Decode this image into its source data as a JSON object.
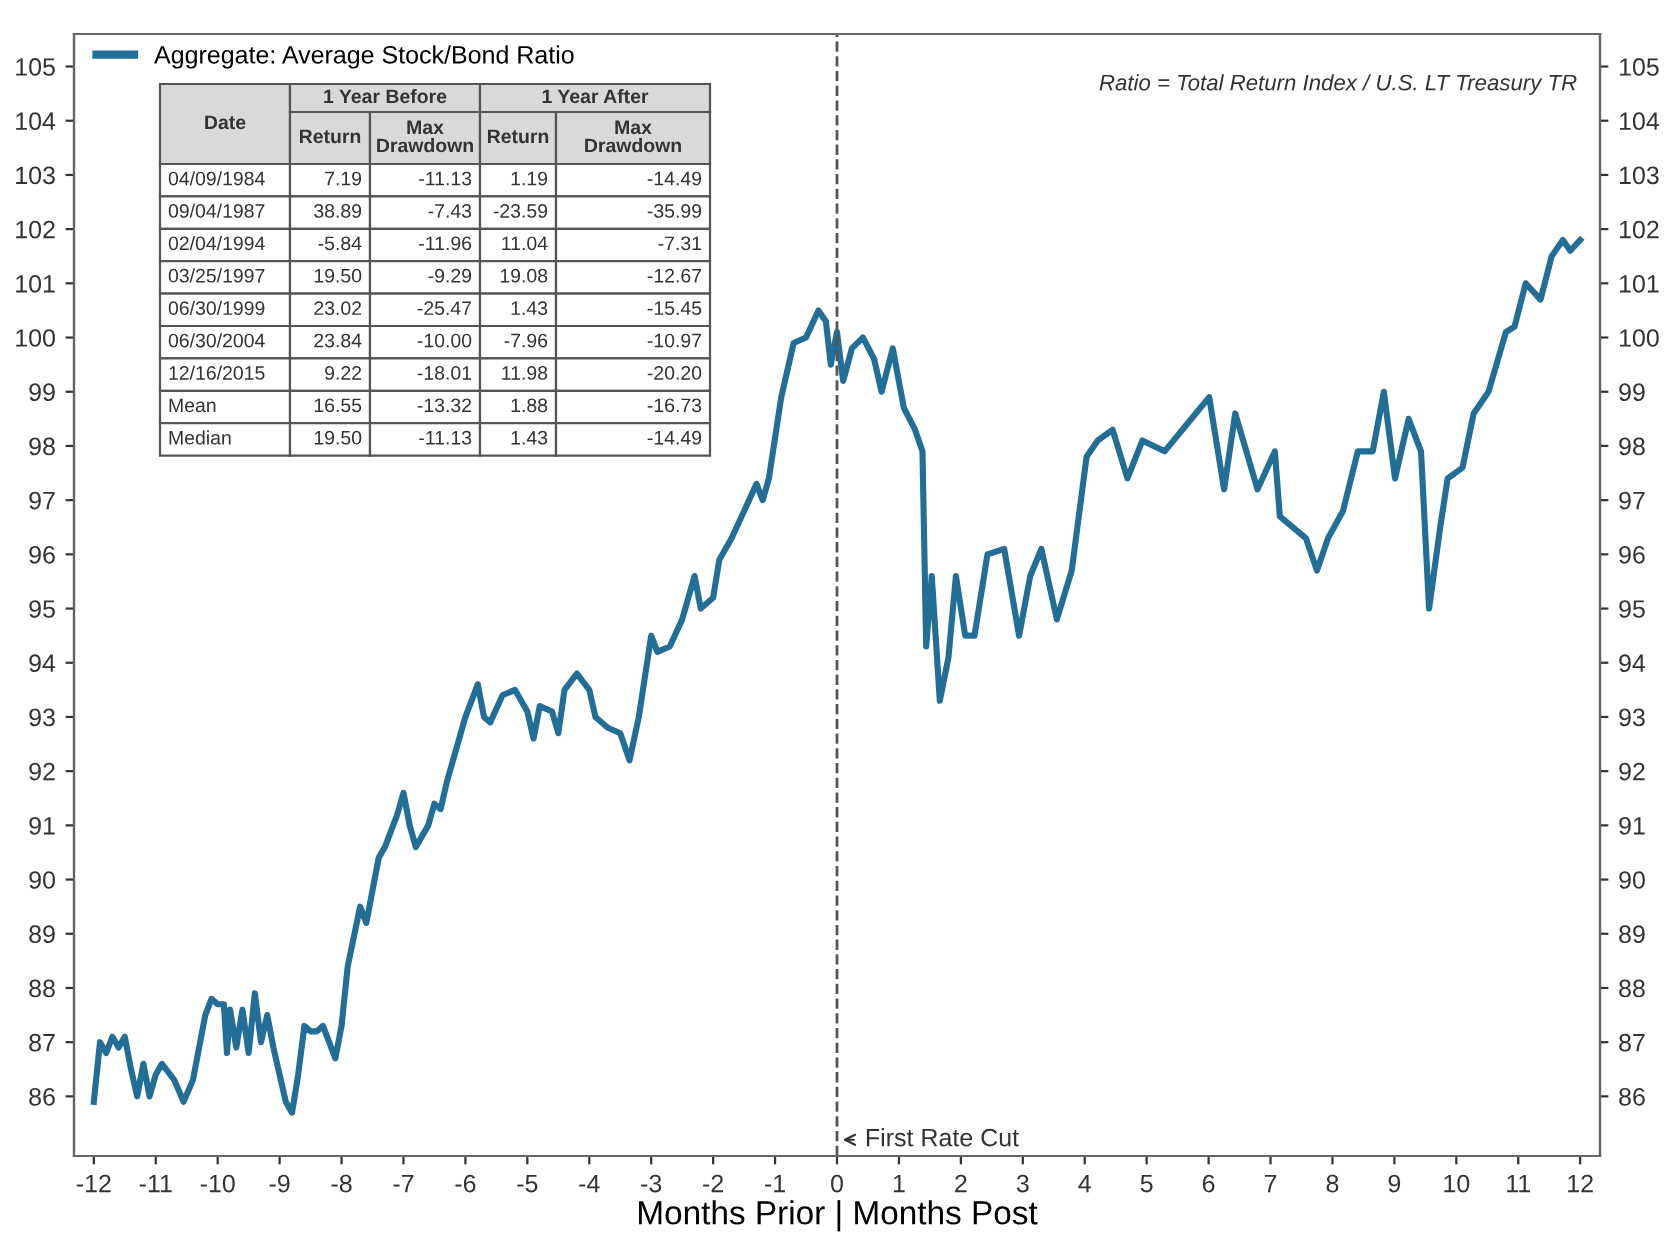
{
  "chart_data": {
    "type": "line",
    "xlabel": "Months Prior | Months Post",
    "x": [
      -12,
      -11.9,
      -11.8,
      -11.7,
      -11.6,
      -11.5,
      -11.4,
      -11.3,
      -11.2,
      -11.1,
      -11.0,
      -10.9,
      -10.7,
      -10.55,
      -10.4,
      -10.2,
      -10.1,
      -10.0,
      -9.9,
      -9.85,
      -9.8,
      -9.7,
      -9.6,
      -9.5,
      -9.4,
      -9.3,
      -9.2,
      -9.1,
      -9.0,
      -8.9,
      -8.8,
      -8.7,
      -8.6,
      -8.5,
      -8.4,
      -8.3,
      -8.1,
      -8.0,
      -7.9,
      -7.7,
      -7.6,
      -7.4,
      -7.3,
      -7.1,
      -7.0,
      -6.9,
      -6.8,
      -6.6,
      -6.5,
      -6.4,
      -6.3,
      -6.1,
      -6.0,
      -5.9,
      -5.8,
      -5.7,
      -5.6,
      -5.4,
      -5.2,
      -5.0,
      -4.9,
      -4.8,
      -4.6,
      -4.5,
      -4.4,
      -4.2,
      -4.0,
      -3.9,
      -3.7,
      -3.5,
      -3.35,
      -3.2,
      -3.0,
      -2.9,
      -2.7,
      -2.5,
      -2.3,
      -2.2,
      -2.0,
      -1.9,
      -1.7,
      -1.5,
      -1.3,
      -1.2,
      -1.1,
      -0.9,
      -0.7,
      -0.5,
      -0.3,
      -0.18,
      -0.1,
      0,
      0.1,
      0.24,
      0.42,
      0.6,
      0.72,
      0.9,
      1.08,
      1.26,
      1.38,
      1.44,
      1.53,
      1.66,
      1.8,
      1.92,
      2.07,
      2.22,
      2.43,
      2.7,
      2.94,
      3.12,
      3.3,
      3.55,
      3.79,
      4.03,
      4.21,
      4.45,
      4.69,
      4.93,
      5.29,
      5.65,
      6.01,
      6.25,
      6.43,
      6.79,
      7.07,
      7.15,
      7.57,
      7.75,
      7.93,
      8.17,
      8.41,
      8.65,
      8.83,
      9.01,
      9.23,
      9.43,
      9.56,
      9.74,
      9.86,
      10.1,
      10.28,
      10.52,
      10.8,
      10.94,
      11.12,
      11.36,
      11.54,
      11.72,
      11.84,
      12.0
    ],
    "series": [
      {
        "name": "Aggregate: Average Stock/Bond Ratio",
        "color": "#236e96",
        "values": [
          85.9,
          87.0,
          86.8,
          87.1,
          86.9,
          87.1,
          86.5,
          86.0,
          86.6,
          86.0,
          86.4,
          86.6,
          86.3,
          85.9,
          86.3,
          87.5,
          87.8,
          87.7,
          87.7,
          86.8,
          87.6,
          86.9,
          87.6,
          86.8,
          87.9,
          87.0,
          87.5,
          86.9,
          86.4,
          85.9,
          85.7,
          86.4,
          87.3,
          87.2,
          87.2,
          87.3,
          86.7,
          87.3,
          88.4,
          89.5,
          89.2,
          90.4,
          90.6,
          91.2,
          91.6,
          91.0,
          90.6,
          91.0,
          91.4,
          91.3,
          91.8,
          92.6,
          93.0,
          93.3,
          93.6,
          93.0,
          92.9,
          93.4,
          93.5,
          93.1,
          92.6,
          93.2,
          93.1,
          92.7,
          93.5,
          93.8,
          93.5,
          93.0,
          92.8,
          92.7,
          92.2,
          93.0,
          94.5,
          94.2,
          94.3,
          94.8,
          95.6,
          95.0,
          95.2,
          95.9,
          96.3,
          96.8,
          97.3,
          97.0,
          97.4,
          98.9,
          99.9,
          100.0,
          100.5,
          100.3,
          99.5,
          100.1,
          99.2,
          99.8,
          100.0,
          99.6,
          99.0,
          99.8,
          98.7,
          98.3,
          97.9,
          94.3,
          95.6,
          93.3,
          94.1,
          95.6,
          94.5,
          94.5,
          96.0,
          96.1,
          94.5,
          95.6,
          96.1,
          94.8,
          95.7,
          97.8,
          98.1,
          98.3,
          97.4,
          98.1,
          97.9,
          98.4,
          98.9,
          97.2,
          98.6,
          97.2,
          97.9,
          96.7,
          96.3,
          95.7,
          96.3,
          96.8,
          97.9,
          97.9,
          99.0,
          97.4,
          98.5,
          97.9,
          95.0,
          96.5,
          97.4,
          97.6,
          98.6,
          99.0,
          100.1,
          100.2,
          101.0,
          100.7,
          101.5,
          101.8,
          101.6,
          101.8
        ]
      }
    ],
    "xlim": [
      -12.32,
      12.32
    ],
    "xticks": [
      -12,
      -11,
      -10,
      -9,
      -8,
      -7,
      -6,
      -5,
      -4,
      -3,
      -2,
      -1,
      0,
      1,
      2,
      3,
      4,
      5,
      6,
      7,
      8,
      9,
      10,
      11,
      12
    ],
    "ylim": [
      84.9,
      105.6
    ],
    "yticks": [
      86,
      87,
      88,
      89,
      90,
      91,
      92,
      93,
      94,
      95,
      96,
      97,
      98,
      99,
      100,
      101,
      102,
      103,
      104,
      105
    ],
    "y2lim": [
      84.9,
      105.6
    ],
    "y2ticks": [
      86,
      87,
      88,
      89,
      90,
      91,
      92,
      93,
      94,
      95,
      96,
      97,
      98,
      99,
      100,
      101,
      102,
      103,
      104,
      105
    ],
    "ref_lines": [
      {
        "axis": "x",
        "value": 0,
        "label": "First Rate Cut",
        "color": "#555555",
        "line_style": "dashed"
      }
    ],
    "grid": false,
    "legend": "top left",
    "marker": "none",
    "line_style": "solid",
    "annotations": [
      "Ratio = Total Return Index / U.S. LT Treasury TR",
      "Date",
      "1 Year Before",
      "1 Year After",
      "Return",
      "Max\nDrawdown",
      "Return",
      "Max\nDrawdown",
      "04/09/1984",
      "7.19",
      "-11.13",
      "1.19",
      "-14.49",
      "09/04/1987",
      "38.89",
      "-7.43",
      "-23.59",
      "-35.99",
      "02/04/1994",
      "-5.84",
      "-11.96",
      "11.04",
      "-7.31",
      "03/25/1997",
      "19.50",
      "-9.29",
      "19.08",
      "-12.67",
      "06/30/1999",
      "23.02",
      "-25.47",
      "1.43",
      "-15.45",
      "06/30/2004",
      "23.84",
      "-10.00",
      "-7.96",
      "-10.97",
      "12/16/2015",
      "9.22",
      "-18.01",
      "11.98",
      "-20.20",
      "Mean",
      "16.55",
      "-13.32",
      "1.88",
      "-16.73",
      "Median",
      "19.50",
      "-11.13",
      "1.43",
      "-14.49"
    ]
  }
}
